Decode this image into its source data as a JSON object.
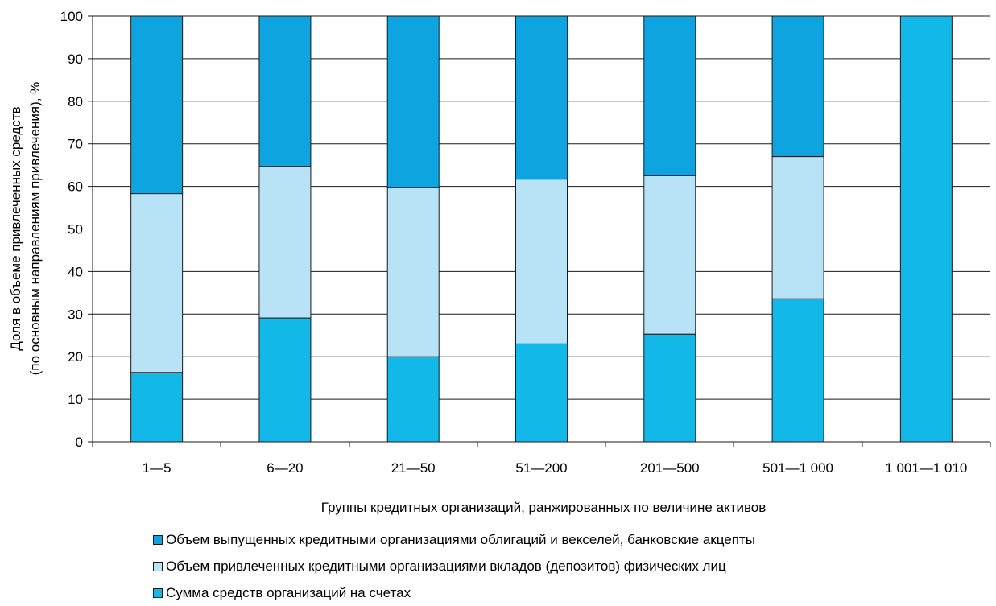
{
  "chart_data": {
    "type": "bar",
    "stacked": true,
    "categories": [
      "1—5",
      "6—20",
      "21—50",
      "51—200",
      "201—500",
      "501—1 000",
      "1 001—1 010"
    ],
    "series": [
      {
        "name": "Сумма средств организаций на счетах",
        "color": "#12b8e8",
        "values": [
          16.3,
          29.1,
          20.0,
          23.0,
          25.3,
          33.6,
          100
        ]
      },
      {
        "name": "Объем привлеченных кредитными организациями вкладов (депозитов) физических лиц",
        "color": "#b8e2f5",
        "values": [
          42.0,
          35.6,
          39.8,
          38.7,
          37.2,
          33.4,
          0
        ]
      },
      {
        "name": "Объем выпущенных кредитными организациями облигаций и векселей, банковские акцепты",
        "color": "#0ea4df",
        "values": [
          41.7,
          35.3,
          40.2,
          38.3,
          37.5,
          33.0,
          0
        ]
      }
    ],
    "xlabel": "Группы кредитных организаций, ранжированных по величине активов",
    "ylabel": "Доля в  объеме привлеченных средств (по основным направлениям привлечения), %",
    "ylabel_lines": [
      "Доля в  объеме привлеченных средств",
      "(по основным направлениям привлечения), %"
    ],
    "ylim": [
      0,
      100
    ],
    "yticks": [
      0,
      10,
      20,
      30,
      40,
      50,
      60,
      70,
      80,
      90,
      100
    ],
    "grid": true,
    "legend_position": "bottom",
    "legend_order": [
      2,
      1,
      0
    ]
  }
}
